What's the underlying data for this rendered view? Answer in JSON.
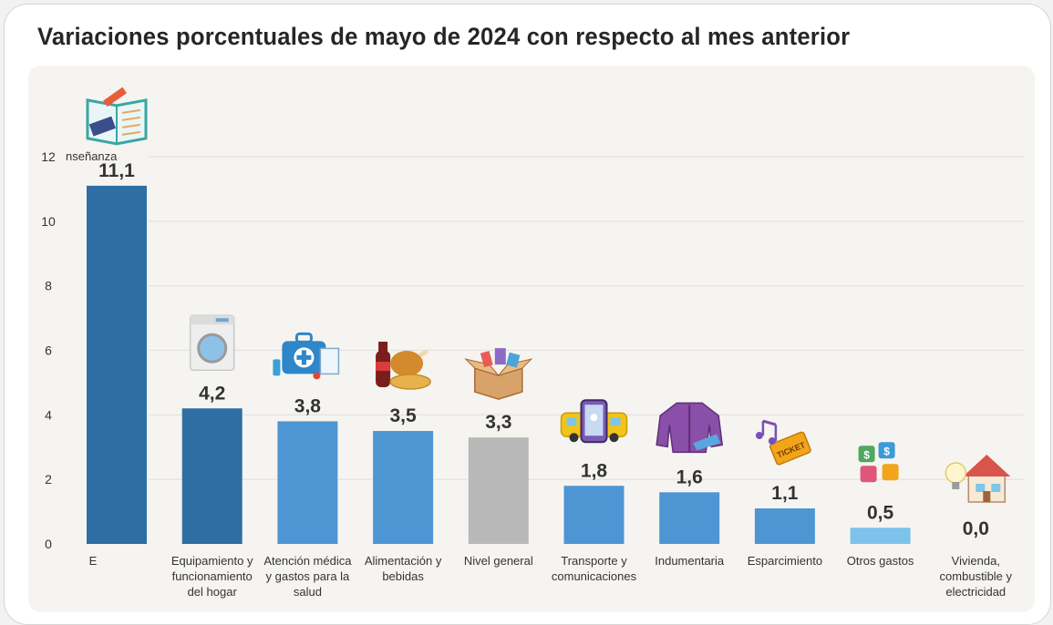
{
  "title": "Variaciones porcentuales de mayo de 2024 con respecto al mes anterior",
  "colors": {
    "dark_blue": "#2f6ea3",
    "mid_blue": "#4e95d4",
    "gray": "#b8b8b8",
    "light_blue": "#7dc2ea",
    "grid": "#e1e1e1",
    "axis_text": "#333333",
    "value_text": "#333333"
  },
  "chart_data": {
    "type": "bar",
    "title": "Variaciones porcentuales de mayo de 2024 con respecto al mes anterior",
    "ylim": [
      0,
      12
    ],
    "yticks": [
      "0",
      "2",
      "4",
      "6",
      "8",
      "10",
      "12"
    ],
    "grid": true,
    "categories": [
      "E",
      "Equipamiento y funcionamiento del hogar",
      "Atención médica y gastos para la salud",
      "Alimentación y bebidas",
      "Nivel general",
      "Transporte y comunicaciones",
      "Indumentaria",
      "Esparcimiento",
      "Otros gastos",
      "Vivienda, combustible y electricidad"
    ],
    "category_lines": [
      [
        "E"
      ],
      [
        "Equipamiento y",
        "funcionamiento",
        "del hogar"
      ],
      [
        "Atención médica",
        "y gastos para la",
        "salud"
      ],
      [
        "Alimentación y",
        "bebidas"
      ],
      [
        "Nivel general"
      ],
      [
        "Transporte y",
        "comunicaciones"
      ],
      [
        "Indumentaria"
      ],
      [
        "Esparcimiento"
      ],
      [
        "Otros gastos"
      ],
      [
        "Vivienda,",
        "combustible y",
        "electricidad"
      ]
    ],
    "values": [
      11.1,
      4.2,
      3.8,
      3.5,
      3.3,
      1.8,
      1.6,
      1.1,
      0.5,
      0.0
    ],
    "value_labels": [
      "11,1",
      "4,2",
      "3,8",
      "3,5",
      "3,3",
      "1,8",
      "1,6",
      "1,1",
      "0,5",
      "0,0"
    ],
    "bar_colors": [
      "dark_blue",
      "dark_blue",
      "mid_blue",
      "mid_blue",
      "gray",
      "mid_blue",
      "mid_blue",
      "mid_blue",
      "light_blue",
      "light_blue"
    ],
    "icons": [
      "book-icon",
      "washing-machine-icon",
      "medical-kit-icon",
      "food-drink-icon",
      "goods-box-icon",
      "phone-bus-icon",
      "jacket-icon",
      "music-ticket-icon",
      "puzzle-money-icon",
      "house-bulb-icon"
    ],
    "annotations": [
      "nseñanza"
    ]
  }
}
